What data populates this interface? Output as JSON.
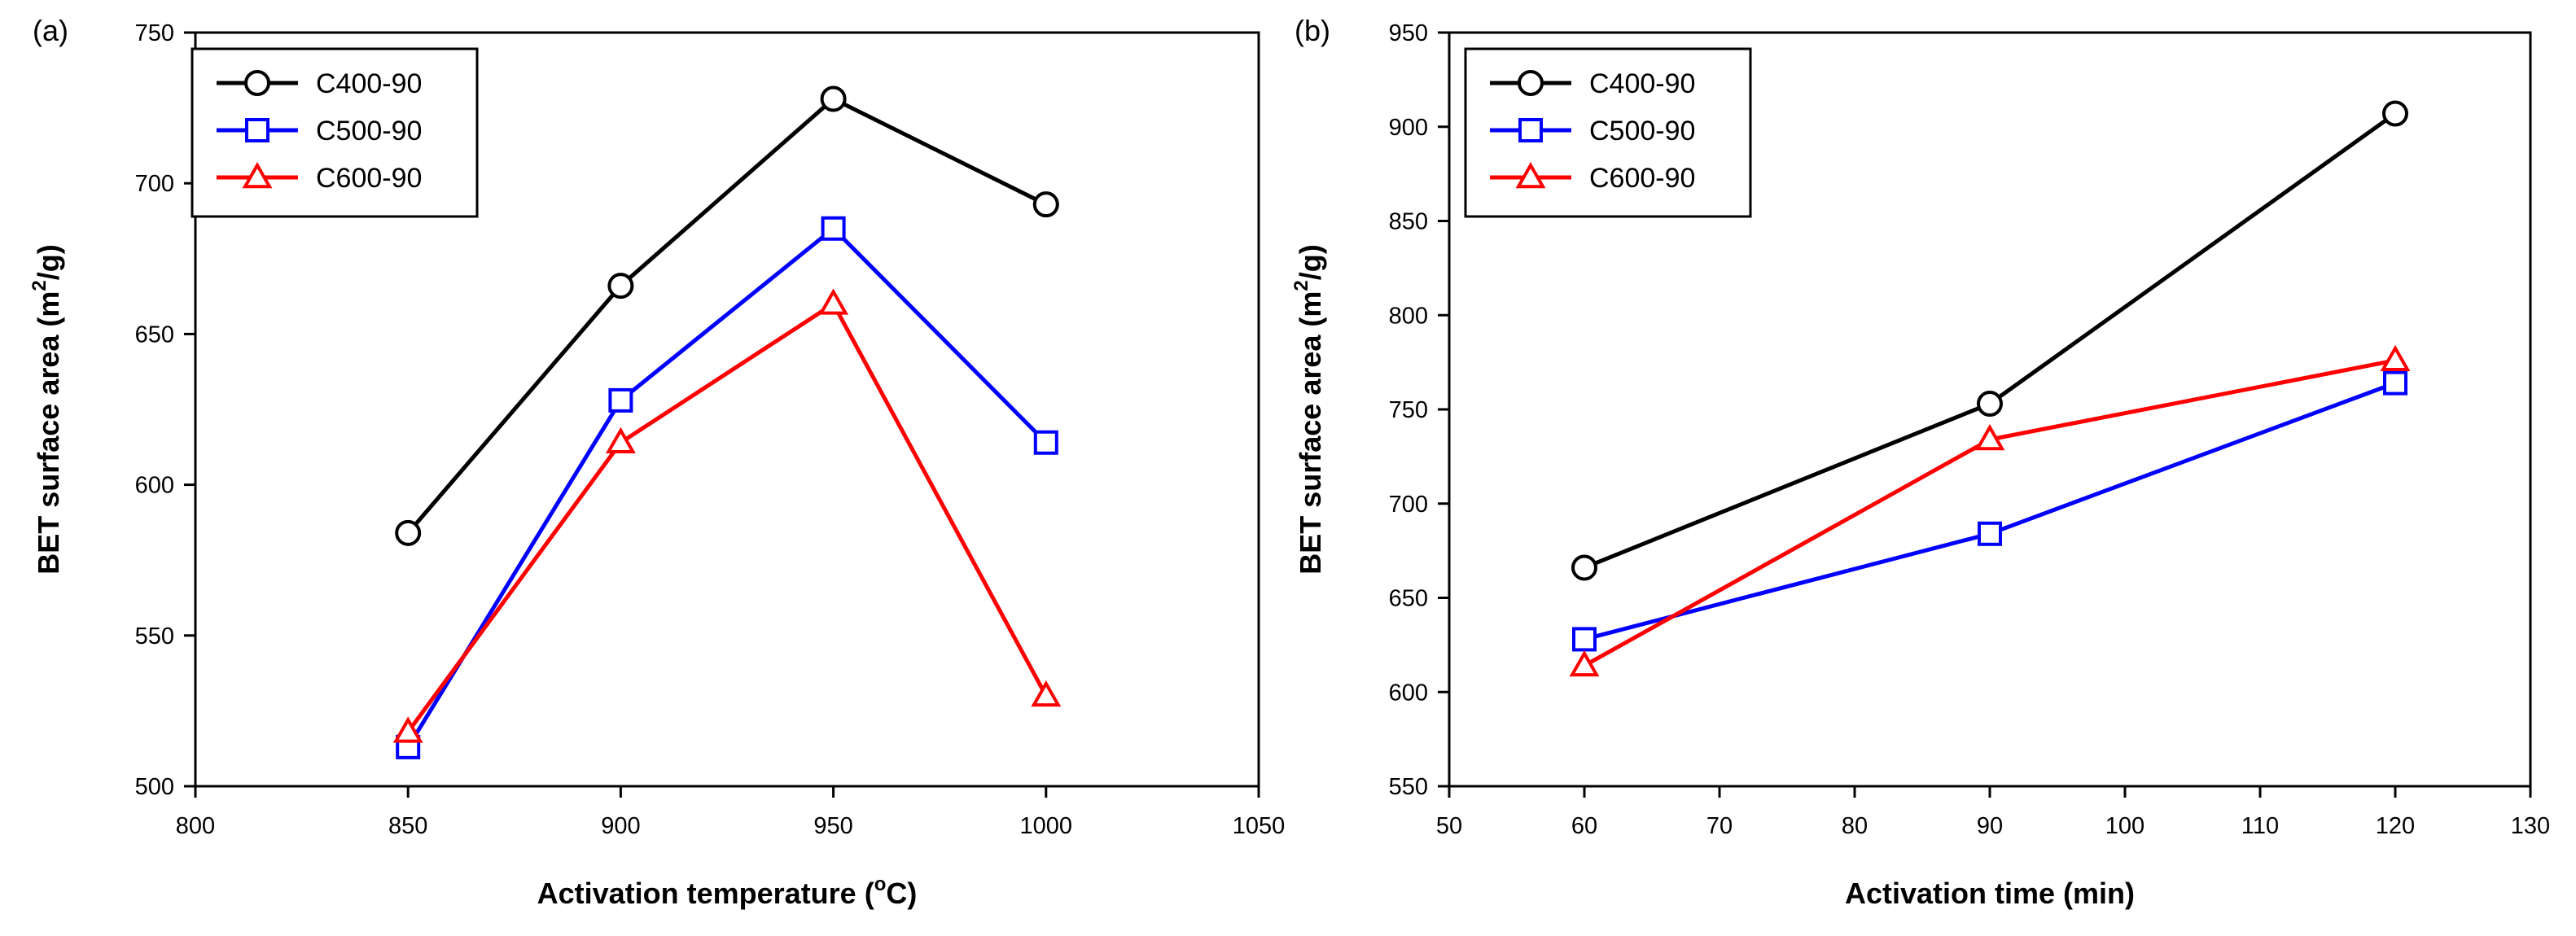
{
  "chart_data": [
    {
      "panel_label": "(a)",
      "type": "line",
      "xlabel": "Activation temperature (",
      "xlabel_sup": "o",
      "xlabel_tail": "C)",
      "ylabel": "BET surface area (m",
      "ylabel_sup": "2",
      "ylabel_tail": "/g)",
      "xlim": [
        800,
        1050
      ],
      "ylim": [
        500,
        750
      ],
      "xticks": [
        800,
        850,
        900,
        950,
        1000,
        1050
      ],
      "yticks": [
        500,
        550,
        600,
        650,
        700,
        750
      ],
      "legend_position": "top-left",
      "series": [
        {
          "name": "C400-90",
          "marker": "circle",
          "color": "#000000",
          "x": [
            850,
            900,
            950,
            1000
          ],
          "values": [
            584,
            666,
            728,
            693
          ]
        },
        {
          "name": "C500-90",
          "marker": "square",
          "color": "#0000ff",
          "x": [
            850,
            900,
            950,
            1000
          ],
          "values": [
            513,
            628,
            685,
            614
          ]
        },
        {
          "name": "C600-90",
          "marker": "triangle",
          "color": "#ff0000",
          "x": [
            850,
            900,
            950,
            1000
          ],
          "values": [
            518,
            614,
            660,
            530
          ]
        }
      ]
    },
    {
      "panel_label": "(b)",
      "type": "line",
      "xlabel": "Activation time (min)",
      "xlabel_sup": "",
      "xlabel_tail": "",
      "ylabel": "BET surface area (m",
      "ylabel_sup": "2",
      "ylabel_tail": "/g)",
      "xlim": [
        50,
        130
      ],
      "ylim": [
        550,
        950
      ],
      "xticks": [
        50,
        60,
        70,
        80,
        90,
        100,
        110,
        120,
        130
      ],
      "yticks": [
        550,
        600,
        650,
        700,
        750,
        800,
        850,
        900,
        950
      ],
      "legend_position": "top-left",
      "series": [
        {
          "name": "C400-90",
          "marker": "circle",
          "color": "#000000",
          "x": [
            60,
            90,
            120
          ],
          "values": [
            666,
            753,
            907
          ]
        },
        {
          "name": "C500-90",
          "marker": "square",
          "color": "#0000ff",
          "x": [
            60,
            90,
            120
          ],
          "values": [
            628,
            684,
            764
          ]
        },
        {
          "name": "C600-90",
          "marker": "triangle",
          "color": "#ff0000",
          "x": [
            60,
            90,
            120
          ],
          "values": [
            614,
            734,
            776
          ]
        }
      ]
    }
  ]
}
